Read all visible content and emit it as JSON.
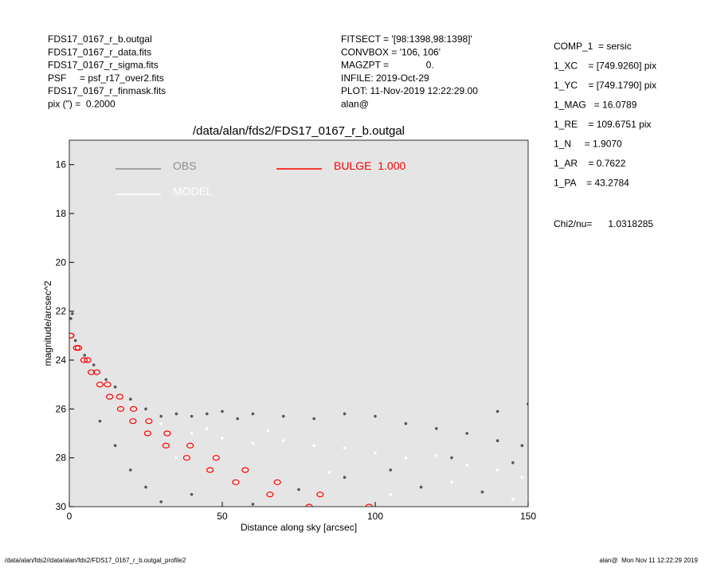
{
  "header": {
    "left": [
      "FDS17_0167_r_b.outgal",
      "FDS17_0167_r_data.fits",
      "FDS17_0167_r_sigma.fits",
      "PSF     = psf_r17_over2.fits",
      "FDS17_0167_r_finmask.fits",
      "pix (\") =  0.2000"
    ],
    "middle": [
      "FITSECT = '[98:1398,98:1398]'",
      "CONVBOX = '106, 106'",
      "MAGZPT =              0.",
      "INFILE: 2019-Oct-29",
      "PLOT: 11-Nov-2019 12:22:29.00",
      "alan@"
    ],
    "right": [
      "COMP_1  = sersic",
      "1_XC    = [749.9260] pix",
      "1_YC    = [749.1790] pix",
      "1_MAG   = 16.0789",
      "1_RE    = 109.6751 pix",
      "1_N     = 1.9070",
      "1_AR    = 0.7622",
      "1_PA    = 43.2784"
    ],
    "chi2": "Chi2/nu=      1.0318285"
  },
  "footer": {
    "left": "/data/alan/fds2//data/alan/fds2/FDS17_0167_r_b.outgal_profile2",
    "right": "alan@  Mon Nov 11 12:22:29 2019"
  },
  "chart_data": {
    "type": "scatter",
    "title": "/data/alan/fds2/FDS17_0167_r_b.outgal",
    "x_label": "Distance along sky [arcsec]",
    "y_label": "magnitude/arcsec^2",
    "xlim": [
      0,
      150
    ],
    "xticks": [
      0,
      50,
      100,
      150
    ],
    "ylim": [
      30,
      15
    ],
    "yticks": [
      16,
      18,
      20,
      22,
      24,
      26,
      28,
      30
    ],
    "plot_background": "#e5e5e5",
    "legend": "upper-left",
    "series": [
      {
        "name": "OBS",
        "color": "#555555",
        "legend_color": "#8c8c8c",
        "marker": "filled",
        "x": [
          0.5,
          1,
          2,
          5,
          8,
          12,
          15,
          20,
          25,
          30,
          35,
          40,
          45,
          50,
          55,
          60,
          70,
          80,
          90,
          100,
          110,
          120,
          130,
          140,
          148,
          10,
          15,
          20,
          25,
          30,
          40,
          60,
          75,
          90,
          105,
          115,
          125,
          135,
          145,
          140,
          150
        ],
        "values": [
          22.3,
          22.1,
          23.2,
          23.8,
          24.2,
          24.8,
          25.1,
          25.6,
          26.0,
          26.3,
          26.2,
          26.3,
          26.2,
          26.1,
          26.4,
          26.2,
          26.3,
          26.4,
          26.2,
          26.3,
          26.6,
          26.8,
          27.0,
          27.3,
          27.5,
          26.5,
          27.5,
          28.5,
          29.2,
          29.8,
          29.5,
          29.9,
          29.3,
          28.8,
          28.5,
          29.2,
          28.0,
          29.4,
          28.2,
          26.1,
          25.8
        ]
      },
      {
        "name": "MODEL",
        "color": "#ffffff",
        "legend_color": "#ffffff",
        "marker": "filled",
        "x": [
          3,
          10,
          20,
          30,
          40,
          50,
          60,
          70,
          80,
          90,
          100,
          110,
          120,
          130,
          140,
          148,
          45,
          65,
          85,
          105,
          125,
          145,
          35,
          55
        ],
        "values": [
          23.5,
          24.6,
          25.8,
          26.6,
          27.0,
          27.2,
          27.4,
          27.3,
          27.5,
          27.6,
          27.8,
          28.0,
          27.9,
          28.3,
          28.5,
          28.8,
          26.8,
          26.9,
          28.6,
          29.5,
          29.0,
          29.7,
          28.0,
          29.0
        ]
      },
      {
        "name": "BULGE  1.000",
        "color": "#ff0000",
        "legend_color": "#ff0000",
        "marker": "open",
        "x": [
          0.5,
          3,
          6,
          9,
          12.5,
          16.5,
          21,
          26,
          32,
          39.5,
          48,
          57.5,
          68,
          82,
          98,
          0.4,
          2.4,
          4.8,
          7.2,
          10,
          13.2,
          16.8,
          20.8,
          25.6,
          31.6,
          38.4,
          46,
          54.4,
          65.6,
          78.4
        ],
        "values": [
          23.0,
          23.5,
          24.0,
          24.5,
          25.0,
          25.5,
          26.0,
          26.5,
          27.0,
          27.5,
          28.0,
          28.5,
          29.0,
          29.5,
          30.0,
          23.0,
          23.5,
          24.0,
          24.5,
          25.0,
          25.5,
          26.0,
          26.5,
          27.0,
          27.5,
          28.0,
          28.5,
          29.0,
          29.5,
          30.0
        ]
      }
    ]
  }
}
